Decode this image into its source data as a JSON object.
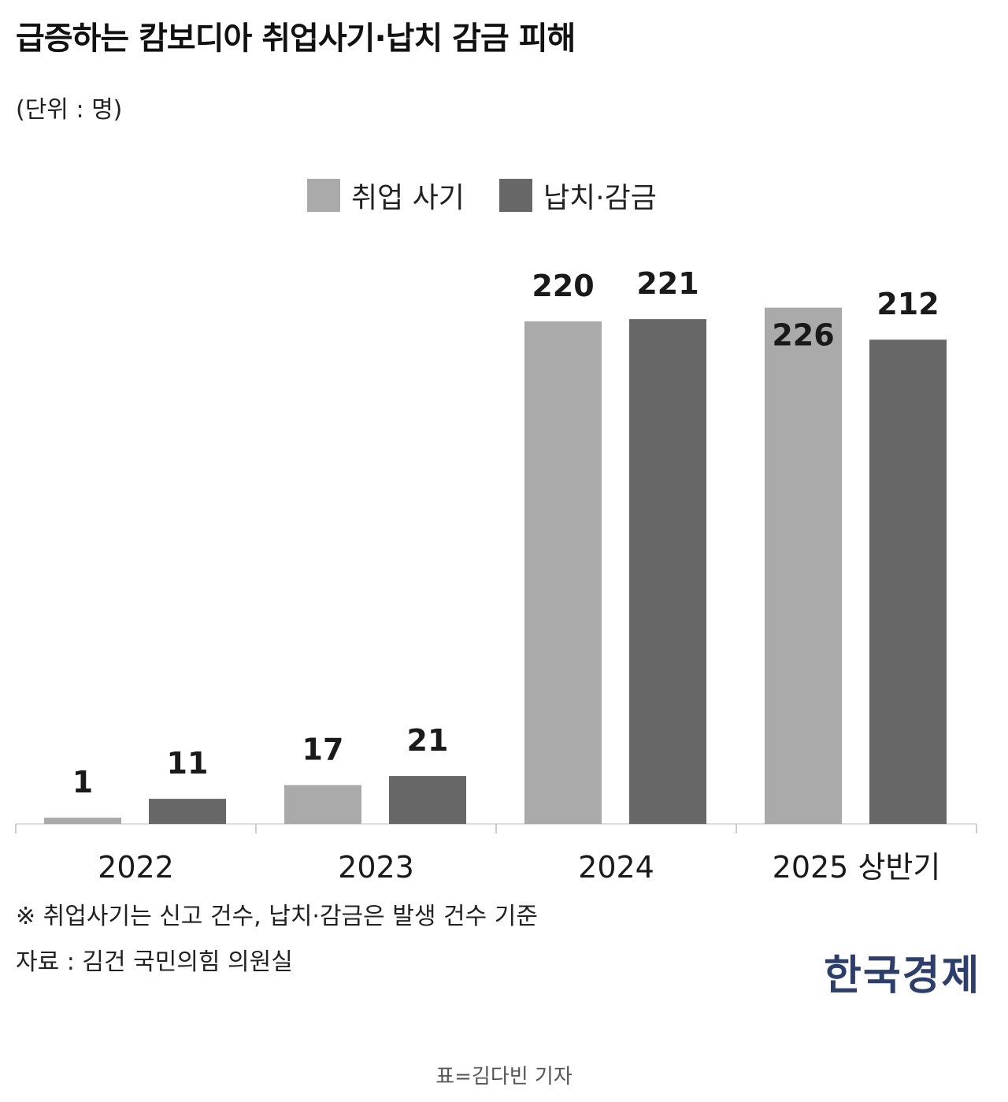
{
  "header": {
    "title": "급증하는 캄보디아 취업사기·납치 감금 피해",
    "unit": "(단위 : 명)"
  },
  "legend": {
    "items": [
      {
        "label": "취업 사기",
        "color": "#aaaaaa"
      },
      {
        "label": "납치·감금",
        "color": "#676767"
      }
    ]
  },
  "chart_data": {
    "type": "bar",
    "categories": [
      "2022",
      "2023",
      "2024",
      "2025 상반기"
    ],
    "series": [
      {
        "name": "취업 사기",
        "values": [
          1,
          17,
          220,
          226
        ],
        "color": "#aaaaaa"
      },
      {
        "name": "납치·감금",
        "values": [
          11,
          21,
          221,
          212
        ],
        "color": "#676767"
      }
    ],
    "title": "급증하는 캄보디아 취업사기·납치 감금 피해",
    "xlabel": "",
    "ylabel": "",
    "ylim": [
      0,
      230
    ],
    "grid": false,
    "legend": "top-center"
  },
  "footer": {
    "note": "※ 취업사기는 신고 건수, 납치·감금은 발생 건수 기준",
    "source": "자료 : 김건 국민의힘 의원실",
    "logo": "한국경제",
    "credit": "표=김다빈 기자"
  }
}
